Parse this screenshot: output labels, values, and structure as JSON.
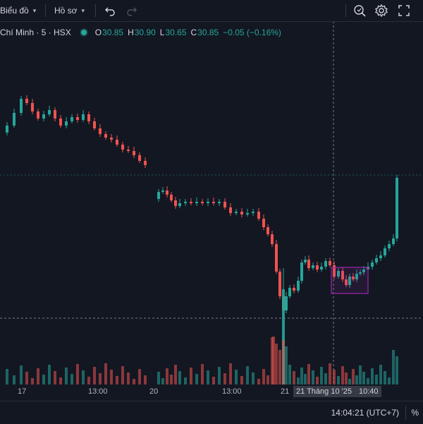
{
  "toolbar": {
    "chart_label": "Biểu đồ",
    "profile_label": "Hồ sơ",
    "icons": [
      "undo-icon",
      "redo-icon",
      "magnifier-settings-icon",
      "gear-icon",
      "fullscreen-icon"
    ]
  },
  "legend": {
    "symbol": "Chí Minh · 5 · HSX",
    "open_label": "O",
    "open": "30.85",
    "high_label": "H",
    "high": "30.90",
    "low_label": "L",
    "low": "30.65",
    "close_label": "C",
    "close": "30.85",
    "change": "−0.05 (−0.16%)"
  },
  "time_axis": {
    "labels": [
      "17",
      "13:00",
      "20",
      "13:00",
      "21"
    ],
    "cursor_date": "21 Tháng 10 '25",
    "cursor_time": "10:40"
  },
  "status": {
    "clock": "14:04:21 (UTC+7)",
    "percent_toggle": "%"
  },
  "colors": {
    "up": "#26a69a",
    "down": "#ef5350",
    "background": "#131722",
    "selection_box": "#9c27b0"
  },
  "chart_data": {
    "type": "candlestick",
    "price_reference_lines": "dashed horizontal lines",
    "selection_highlight": "purple rectangle around a cluster of candles on day 21"
  }
}
